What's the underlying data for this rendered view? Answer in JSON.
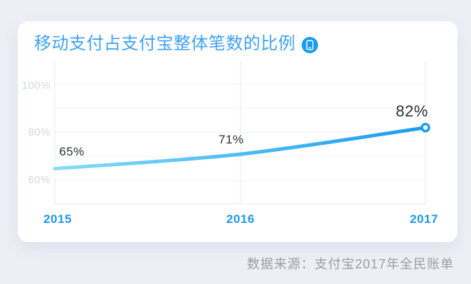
{
  "header": {
    "title": "移动支付占支付宝整体笔数的比例",
    "icon": "mobile-phone-circle-icon"
  },
  "chart_data": {
    "type": "line",
    "title": "移动支付占支付宝整体笔数的比例",
    "categories": [
      "2015",
      "2016",
      "2017"
    ],
    "values": [
      65,
      71,
      82
    ],
    "data_labels": [
      "65%",
      "71%",
      "82%"
    ],
    "y_ticks_labeled": [
      "100%",
      "80%",
      "60%"
    ],
    "y_grid_values": [
      100,
      90,
      80,
      70,
      60
    ],
    "ylim": [
      50,
      110
    ],
    "grid": true,
    "legend": false,
    "xlabel": "",
    "ylabel": ""
  },
  "footer": {
    "source_text": "数据来源：支付宝2017年全民账单"
  },
  "colors": {
    "page_bg": "#EDEFF6",
    "card_bg": "#FFFFFF",
    "title_blue": "#3FA2F3",
    "accent_blue": "#189BF0",
    "line_gradient_start": "#86DDF5",
    "line_gradient_end": "#189BF0",
    "year_label_blue": "#1E97E8",
    "data_label_dark": "#2B2F33",
    "tick_gray": "#D3D6DC",
    "grid_gray": "#F1F2F5",
    "axis_gray": "#E7E9EE",
    "source_gray": "#9B9EA5"
  }
}
